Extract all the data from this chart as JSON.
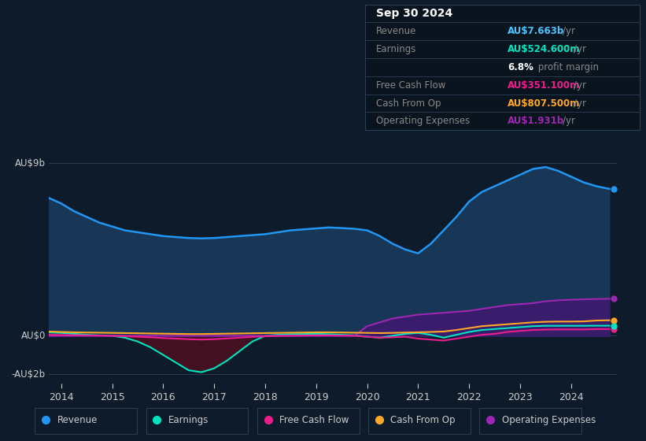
{
  "bg_color": "#0d1b2a",
  "chart_bg": "#0d1b2a",
  "ylabel_top": "AU$9b",
  "ylabel_zero": "AU$0",
  "ylabel_bottom": "-AU$2b",
  "ylim": [
    -2.5,
    10.5
  ],
  "years": [
    2013.75,
    2014.0,
    2014.25,
    2014.5,
    2014.75,
    2015.0,
    2015.25,
    2015.5,
    2015.75,
    2016.0,
    2016.25,
    2016.5,
    2016.75,
    2017.0,
    2017.25,
    2017.5,
    2017.75,
    2018.0,
    2018.25,
    2018.5,
    2018.75,
    2019.0,
    2019.25,
    2019.5,
    2019.75,
    2020.0,
    2020.25,
    2020.5,
    2020.75,
    2021.0,
    2021.25,
    2021.5,
    2021.75,
    2022.0,
    2022.25,
    2022.5,
    2022.75,
    2023.0,
    2023.25,
    2023.5,
    2023.75,
    2024.0,
    2024.25,
    2024.5,
    2024.75
  ],
  "revenue": [
    7.2,
    6.9,
    6.5,
    6.2,
    5.9,
    5.7,
    5.5,
    5.4,
    5.3,
    5.2,
    5.15,
    5.1,
    5.08,
    5.1,
    5.15,
    5.2,
    5.25,
    5.3,
    5.4,
    5.5,
    5.55,
    5.6,
    5.65,
    5.62,
    5.58,
    5.5,
    5.2,
    4.8,
    4.5,
    4.3,
    4.8,
    5.5,
    6.2,
    7.0,
    7.5,
    7.8,
    8.1,
    8.4,
    8.7,
    8.8,
    8.6,
    8.3,
    8.0,
    7.8,
    7.663
  ],
  "earnings": [
    0.18,
    0.15,
    0.1,
    0.05,
    0.02,
    0.0,
    -0.1,
    -0.3,
    -0.6,
    -1.0,
    -1.4,
    -1.8,
    -1.9,
    -1.7,
    -1.3,
    -0.8,
    -0.3,
    0.0,
    0.05,
    0.08,
    0.09,
    0.1,
    0.08,
    0.05,
    0.02,
    -0.05,
    -0.1,
    0.0,
    0.1,
    0.15,
    0.05,
    -0.1,
    0.05,
    0.2,
    0.3,
    0.35,
    0.4,
    0.45,
    0.5,
    0.52,
    0.52,
    0.52,
    0.52,
    0.5248,
    0.5246
  ],
  "free_cash_flow": [
    0.05,
    0.04,
    0.03,
    0.02,
    0.01,
    0.0,
    -0.02,
    -0.05,
    -0.08,
    -0.12,
    -0.15,
    -0.18,
    -0.2,
    -0.18,
    -0.14,
    -0.1,
    -0.06,
    -0.03,
    -0.01,
    0.0,
    0.01,
    0.02,
    0.02,
    0.01,
    0.0,
    -0.05,
    -0.1,
    -0.08,
    -0.05,
    -0.15,
    -0.2,
    -0.25,
    -0.15,
    -0.05,
    0.05,
    0.1,
    0.2,
    0.25,
    0.3,
    0.32,
    0.33,
    0.33,
    0.33,
    0.3475,
    0.3511
  ],
  "cash_from_op": [
    0.22,
    0.2,
    0.18,
    0.17,
    0.16,
    0.15,
    0.14,
    0.13,
    0.12,
    0.11,
    0.1,
    0.09,
    0.09,
    0.1,
    0.11,
    0.12,
    0.13,
    0.14,
    0.15,
    0.16,
    0.17,
    0.18,
    0.18,
    0.17,
    0.16,
    0.15,
    0.14,
    0.15,
    0.17,
    0.18,
    0.2,
    0.22,
    0.3,
    0.4,
    0.5,
    0.55,
    0.6,
    0.65,
    0.7,
    0.73,
    0.74,
    0.74,
    0.75,
    0.795,
    0.8075
  ],
  "operating_expenses": [
    0.0,
    0.0,
    0.0,
    0.0,
    0.0,
    0.0,
    0.0,
    0.0,
    0.0,
    0.0,
    0.0,
    0.0,
    0.0,
    0.0,
    0.0,
    0.0,
    0.0,
    0.0,
    0.0,
    0.0,
    0.0,
    0.0,
    0.0,
    0.0,
    0.0,
    0.5,
    0.7,
    0.9,
    1.0,
    1.1,
    1.15,
    1.2,
    1.25,
    1.3,
    1.4,
    1.5,
    1.6,
    1.65,
    1.7,
    1.8,
    1.85,
    1.88,
    1.9,
    1.92,
    1.931
  ],
  "revenue_color": "#2196f3",
  "earnings_color": "#00e5c0",
  "free_cash_flow_color": "#e91e8c",
  "cash_from_op_color": "#ffa726",
  "operating_expenses_color": "#9c27b0",
  "revenue_fill_color": "#1a3a5c",
  "earnings_neg_fill": "#4a1020",
  "operating_expenses_fill": "#3d1a6e",
  "xticks": [
    2014,
    2015,
    2016,
    2017,
    2018,
    2019,
    2020,
    2021,
    2022,
    2023,
    2024
  ],
  "grid_color": "#2a3f55",
  "zero_line_color": "#3a5070",
  "text_color": "#cccccc",
  "legend_items": [
    {
      "label": "Revenue",
      "color": "#2196f3"
    },
    {
      "label": "Earnings",
      "color": "#00e5c0"
    },
    {
      "label": "Free Cash Flow",
      "color": "#e91e8c"
    },
    {
      "label": "Cash From Op",
      "color": "#ffa726"
    },
    {
      "label": "Operating Expenses",
      "color": "#9c27b0"
    }
  ],
  "info_title": "Sep 30 2024",
  "info_rows": [
    {
      "label": "Revenue",
      "value": "AU$7.663b",
      "suffix": "/yr",
      "value_color": "#4dc3ff",
      "bold": false
    },
    {
      "label": "Earnings",
      "value": "AU$524.600m",
      "suffix": "/yr",
      "value_color": "#00e5c0",
      "bold": false
    },
    {
      "label": "",
      "value": "6.8%",
      "suffix": " profit margin",
      "value_color": "#ffffff",
      "bold": true
    },
    {
      "label": "Free Cash Flow",
      "value": "AU$351.100m",
      "suffix": "/yr",
      "value_color": "#e91e8c",
      "bold": false
    },
    {
      "label": "Cash From Op",
      "value": "AU$807.500m",
      "suffix": "/yr",
      "value_color": "#ffa726",
      "bold": false
    },
    {
      "label": "Operating Expenses",
      "value": "AU$1.931b",
      "suffix": "/yr",
      "value_color": "#9c27b0",
      "bold": false
    }
  ]
}
